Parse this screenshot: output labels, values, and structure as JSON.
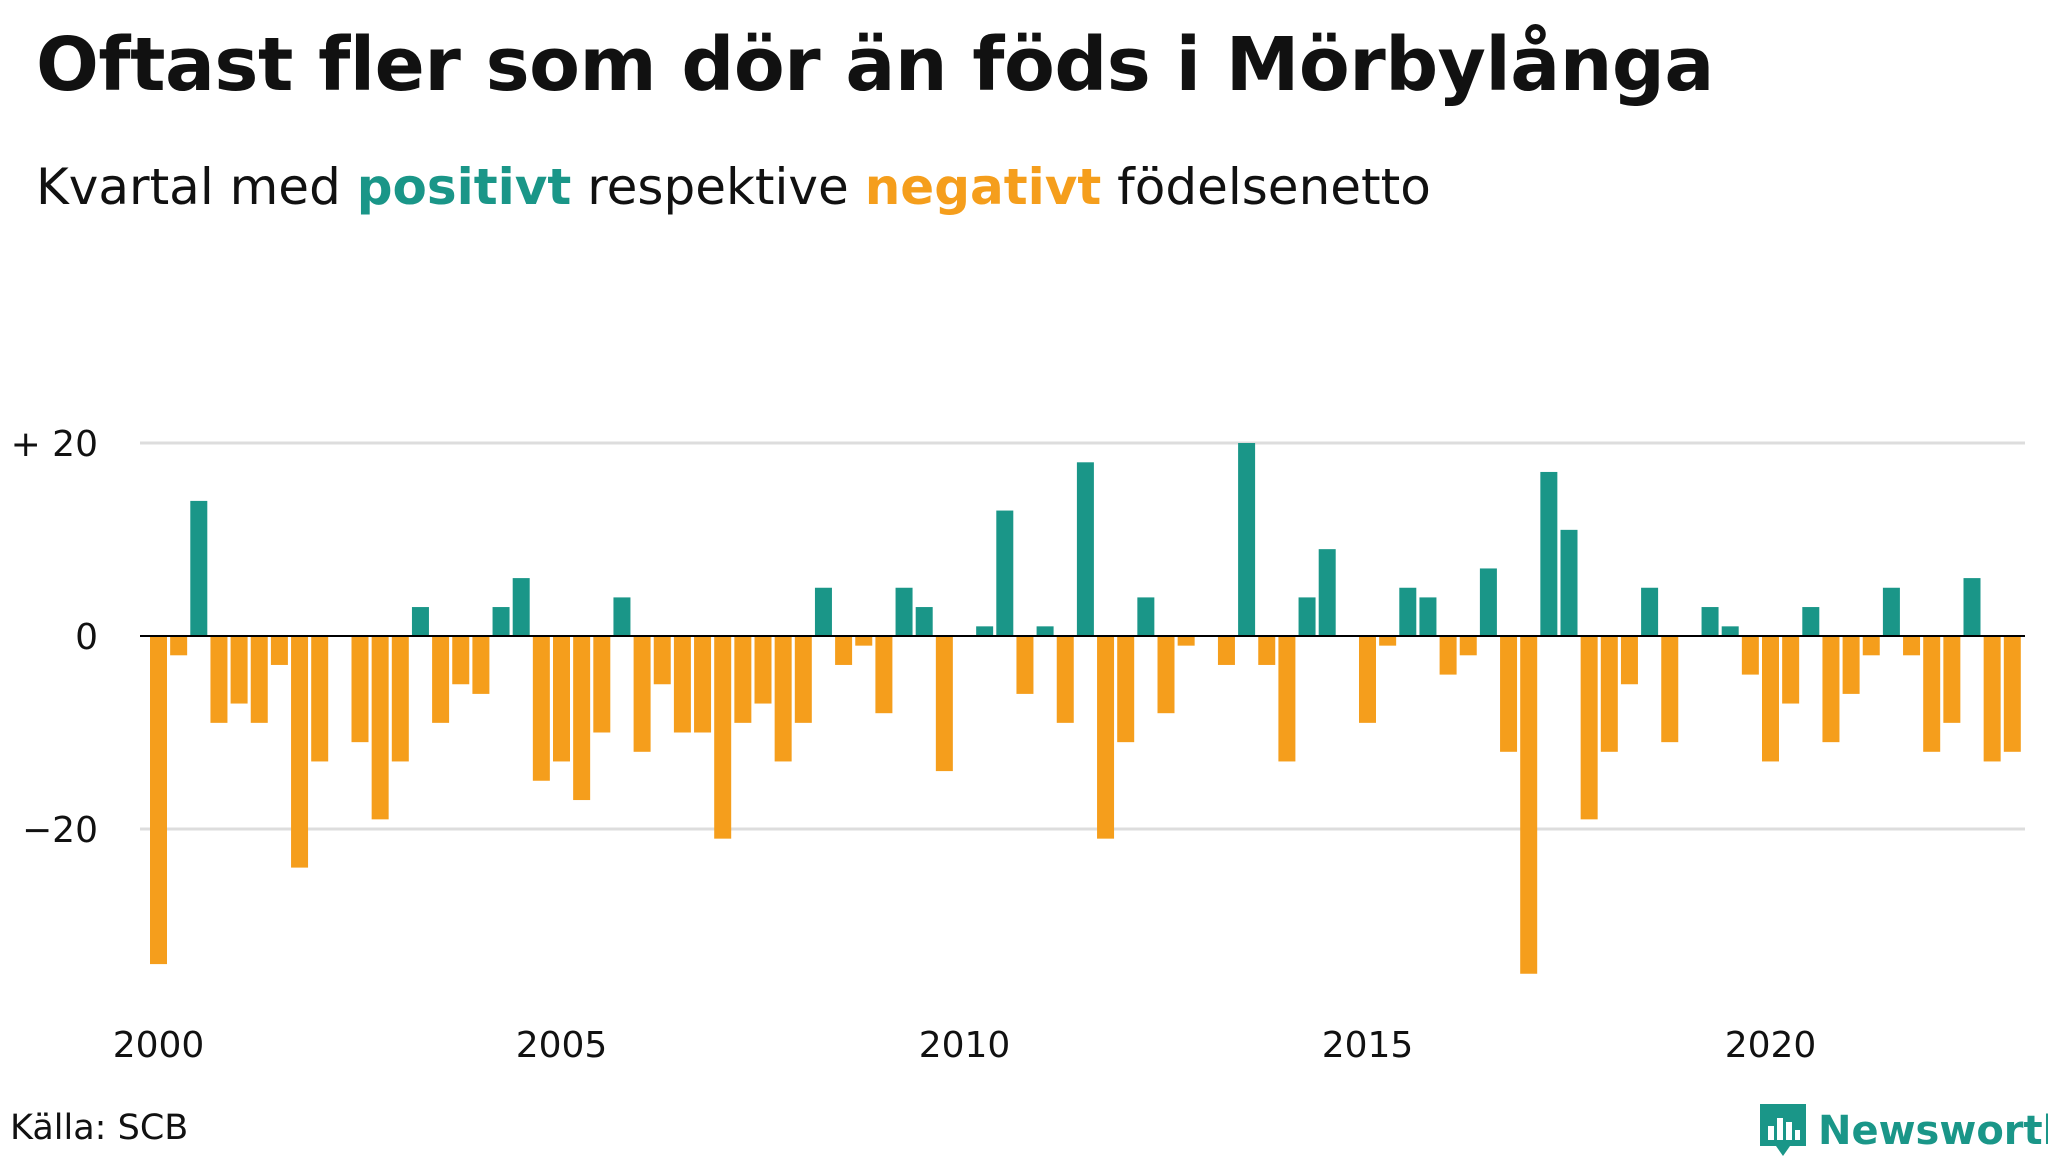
{
  "title": "Oftast fler som dör än föds i Mörbylånga",
  "subtitle": {
    "before": "Kvartal med",
    "positive_word": "positivt",
    "middle": "respektive",
    "negative_word": "negativt",
    "after": "födelsenetto"
  },
  "source": "Källa: SCB",
  "brand": {
    "name": "Newsworthy",
    "color": "#1a9688"
  },
  "colors": {
    "positive": "#1a9688",
    "negative": "#f59e1c",
    "grid": "#dddddd",
    "zero_line": "#000000",
    "text": "#111111"
  },
  "chart_data": {
    "type": "bar",
    "x_start": "2000 Q1",
    "frequency": "quarterly",
    "values": [
      -34,
      -2,
      14,
      -9,
      -7,
      -9,
      -3,
      -24,
      -13,
      0,
      -11,
      -19,
      -13,
      3,
      -9,
      -5,
      -6,
      3,
      6,
      -15,
      -13,
      -17,
      -10,
      4,
      -12,
      -5,
      -10,
      -10,
      -21,
      -9,
      -7,
      -13,
      -9,
      5,
      -3,
      -1,
      -8,
      5,
      3,
      -14,
      0,
      1,
      13,
      -6,
      1,
      -9,
      18,
      -21,
      -11,
      4,
      -8,
      -1,
      0,
      -3,
      20,
      -3,
      -13,
      4,
      9,
      0,
      -9,
      -1,
      5,
      4,
      -4,
      -2,
      7,
      -12,
      -35,
      17,
      11,
      -19,
      -12,
      -5,
      5,
      -11,
      0,
      3,
      1,
      -4,
      -13,
      -7,
      3,
      -11,
      -6,
      -2,
      5,
      -2,
      -12,
      -9,
      6,
      -13,
      -12
    ],
    "y_ticks": [
      {
        "value": 20,
        "label": "+ 20"
      },
      {
        "value": 0,
        "label": "0"
      },
      {
        "value": -20,
        "label": "−20"
      }
    ],
    "x_ticks": [
      {
        "year": 2000,
        "label": "2000"
      },
      {
        "year": 2005,
        "label": "2005"
      },
      {
        "year": 2010,
        "label": "2010"
      },
      {
        "year": 2015,
        "label": "2015"
      },
      {
        "year": 2020,
        "label": "2020"
      }
    ],
    "ylim": [
      -36,
      20
    ],
    "grid": true,
    "legend": "none"
  }
}
